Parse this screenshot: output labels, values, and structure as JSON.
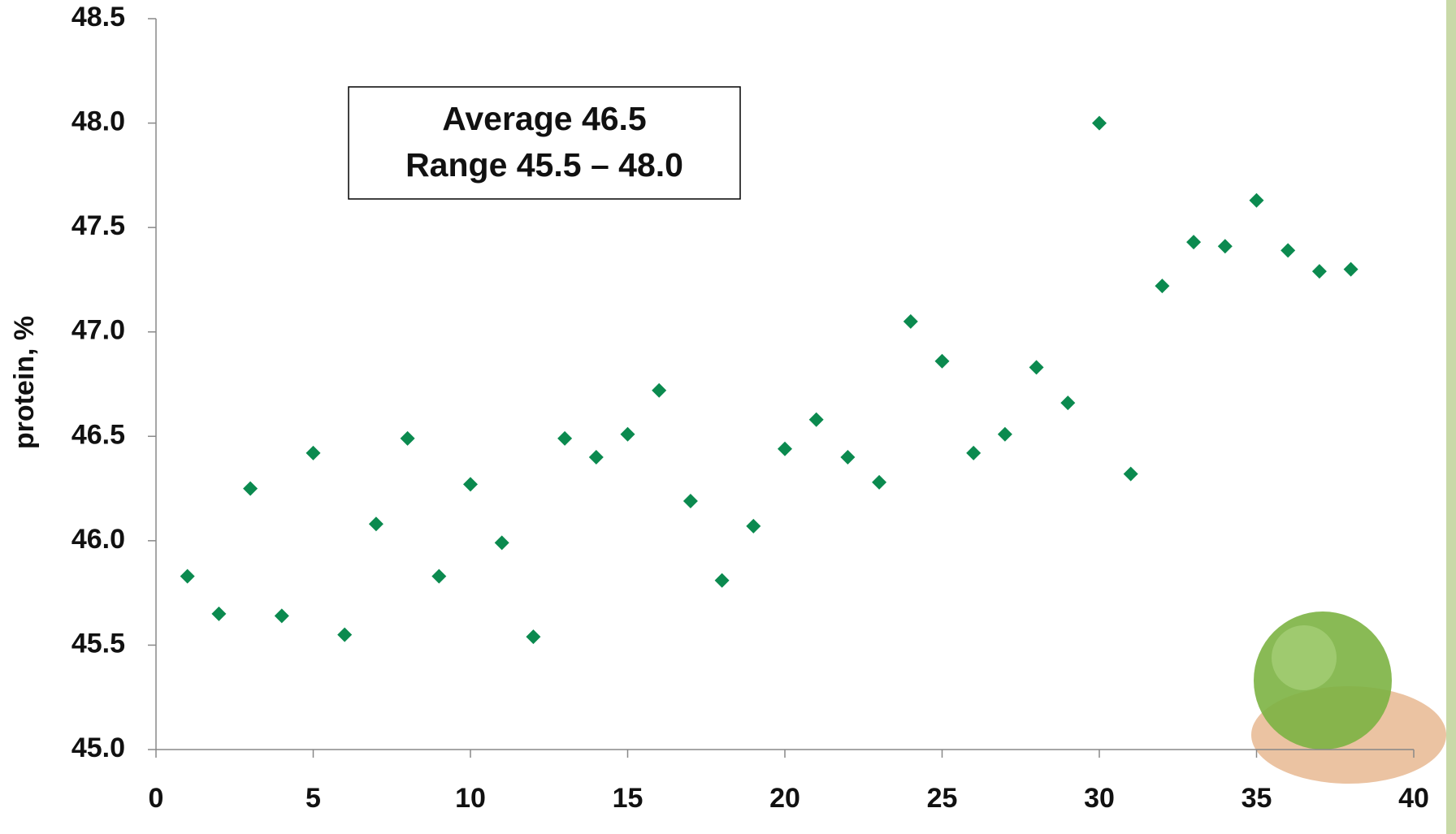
{
  "chart_data": {
    "type": "scatter",
    "y_label": "protein, %",
    "annotation": [
      "Average 46.5",
      "Range 45.5 – 48.0"
    ],
    "x": [
      1,
      2,
      3,
      4,
      5,
      6,
      7,
      8,
      9,
      10,
      11,
      12,
      13,
      14,
      15,
      16,
      17,
      18,
      19,
      20,
      21,
      22,
      23,
      24,
      25,
      26,
      27,
      28,
      29,
      30,
      31,
      32,
      33,
      34,
      35,
      36,
      37,
      38
    ],
    "values": [
      45.83,
      45.65,
      46.25,
      45.64,
      46.42,
      45.55,
      46.08,
      46.49,
      45.83,
      46.27,
      45.99,
      45.54,
      46.49,
      46.4,
      46.51,
      46.72,
      46.19,
      45.81,
      46.07,
      46.44,
      46.58,
      46.4,
      46.28,
      47.05,
      46.86,
      46.42,
      46.51,
      46.83,
      46.66,
      48.0,
      46.32,
      47.22,
      47.43,
      47.41,
      47.63,
      47.39,
      47.29,
      47.3
    ],
    "color": "#0b8a4f",
    "xlim": [
      0,
      40
    ],
    "xticks": [
      0,
      5,
      10,
      15,
      20,
      25,
      30,
      35,
      40
    ],
    "ylim": [
      45,
      48.5
    ],
    "yticks": [
      {
        "value": 45,
        "label": "45.0"
      },
      45.5,
      {
        "value": 46,
        "label": "46.0"
      },
      46.5,
      {
        "value": 47,
        "label": "47.0"
      },
      47.5,
      {
        "value": 48,
        "label": "48.0"
      },
      48.5
    ]
  }
}
